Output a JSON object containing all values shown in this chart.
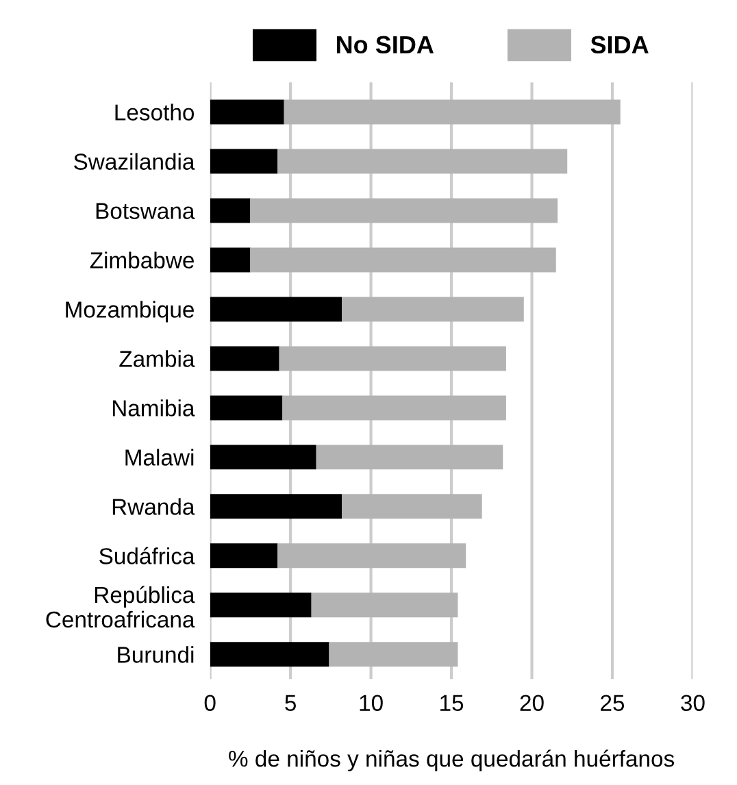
{
  "chart_data": {
    "type": "bar",
    "orientation": "horizontal",
    "stacked": true,
    "categories": [
      "Lesotho",
      "Swazilandia",
      "Botswana",
      "Zimbabwe",
      "Mozambique",
      "Zambia",
      "Namibia",
      "Malawi",
      "Rwanda",
      "Sudáfrica",
      "República\nCentroafricana",
      "Burundi"
    ],
    "series": [
      {
        "name": "No SIDA",
        "color": "#000000",
        "values": [
          4.6,
          4.2,
          2.5,
          2.5,
          8.2,
          4.3,
          4.5,
          6.6,
          8.2,
          4.2,
          6.3,
          7.4
        ]
      },
      {
        "name": "SIDA",
        "color": "#b3b3b3",
        "values": [
          20.9,
          18.0,
          19.1,
          19.0,
          11.3,
          14.1,
          13.9,
          11.6,
          8.7,
          11.7,
          9.1,
          8.0
        ]
      }
    ],
    "xlim": [
      0,
      30
    ],
    "xticks": [
      0,
      5,
      10,
      15,
      20,
      25,
      30
    ],
    "xlabel": "% de niños y niñas que quedarán huérfanos",
    "grid": "x",
    "legend": "top"
  }
}
